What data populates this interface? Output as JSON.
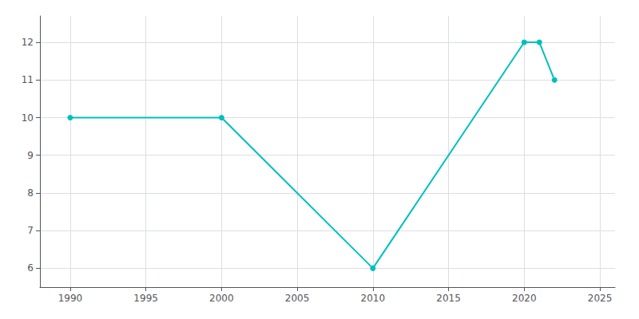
{
  "chart_data": {
    "type": "line",
    "x": [
      1990,
      2000,
      2010,
      2020,
      2021,
      2022
    ],
    "values": [
      10,
      10,
      6,
      12,
      12,
      11
    ],
    "color": "#00BFBF",
    "marker": "circle",
    "xlim": [
      1988,
      2026
    ],
    "xticks": [
      1990,
      1995,
      2000,
      2005,
      2010,
      2015,
      2020,
      2025
    ],
    "ylim": [
      5.5,
      12.7
    ],
    "yticks": [
      6,
      7,
      8,
      9,
      10,
      11,
      12
    ],
    "grid": true
  }
}
